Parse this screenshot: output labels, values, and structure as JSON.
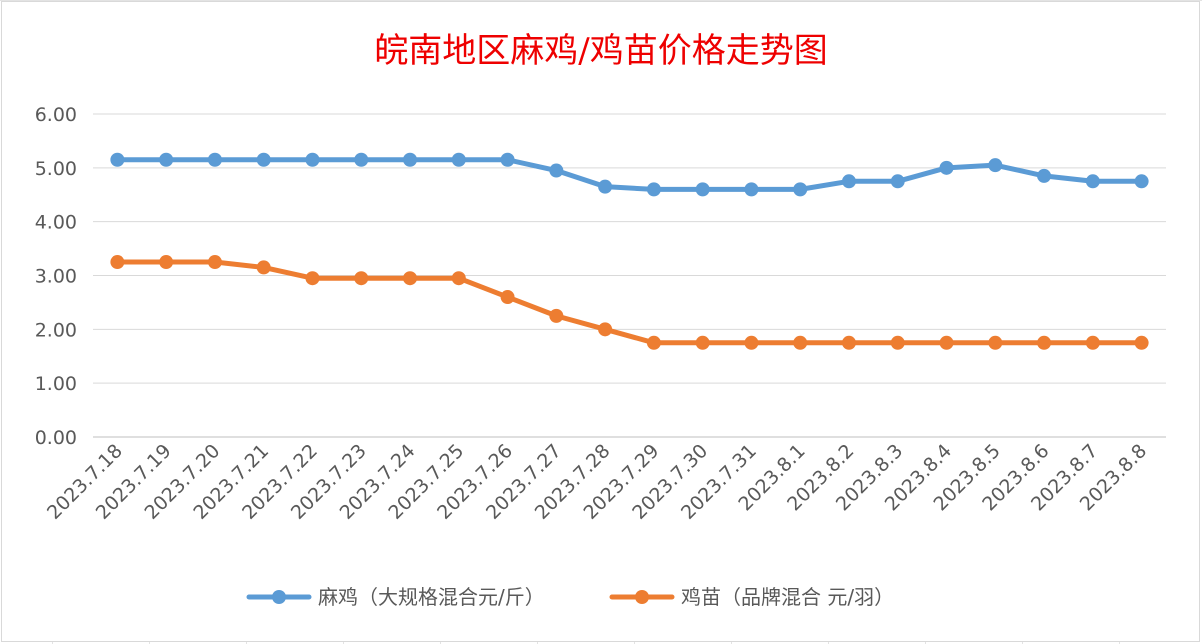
{
  "chart_data": {
    "type": "line",
    "title": "皖南地区麻鸡/鸡苗价格走势图",
    "categories": [
      "2023.7.18",
      "2023.7.19",
      "2023.7.20",
      "2023.7.21",
      "2023.7.22",
      "2023.7.23",
      "2023.7.24",
      "2023.7.25",
      "2023.7.26",
      "2023.7.27",
      "2023.7.28",
      "2023.7.29",
      "2023.7.30",
      "2023.7.31",
      "2023.8.1",
      "2023.8.2",
      "2023.8.3",
      "2023.8.4",
      "2023.8.5",
      "2023.8.6",
      "2023.8.7",
      "2023.8.8"
    ],
    "yticks": [
      "0.00",
      "1.00",
      "2.00",
      "3.00",
      "4.00",
      "5.00",
      "6.00"
    ],
    "ylim": [
      0,
      6
    ],
    "grid": true,
    "legend_position": "bottom",
    "series": [
      {
        "name": "麻鸡（大规格混合元/斤）",
        "color": "#5b9bd5",
        "values": [
          5.15,
          5.15,
          5.15,
          5.15,
          5.15,
          5.15,
          5.15,
          5.15,
          5.15,
          4.95,
          4.65,
          4.6,
          4.6,
          4.6,
          4.6,
          4.75,
          4.75,
          5.0,
          5.05,
          4.85,
          4.75,
          4.75
        ]
      },
      {
        "name": "鸡苗（品牌混合 元/羽）",
        "color": "#ed7d31",
        "values": [
          3.25,
          3.25,
          3.25,
          3.15,
          2.95,
          2.95,
          2.95,
          2.95,
          2.6,
          2.25,
          2.0,
          1.75,
          1.75,
          1.75,
          1.75,
          1.75,
          1.75,
          1.75,
          1.75,
          1.75,
          1.75,
          1.75
        ]
      }
    ]
  }
}
